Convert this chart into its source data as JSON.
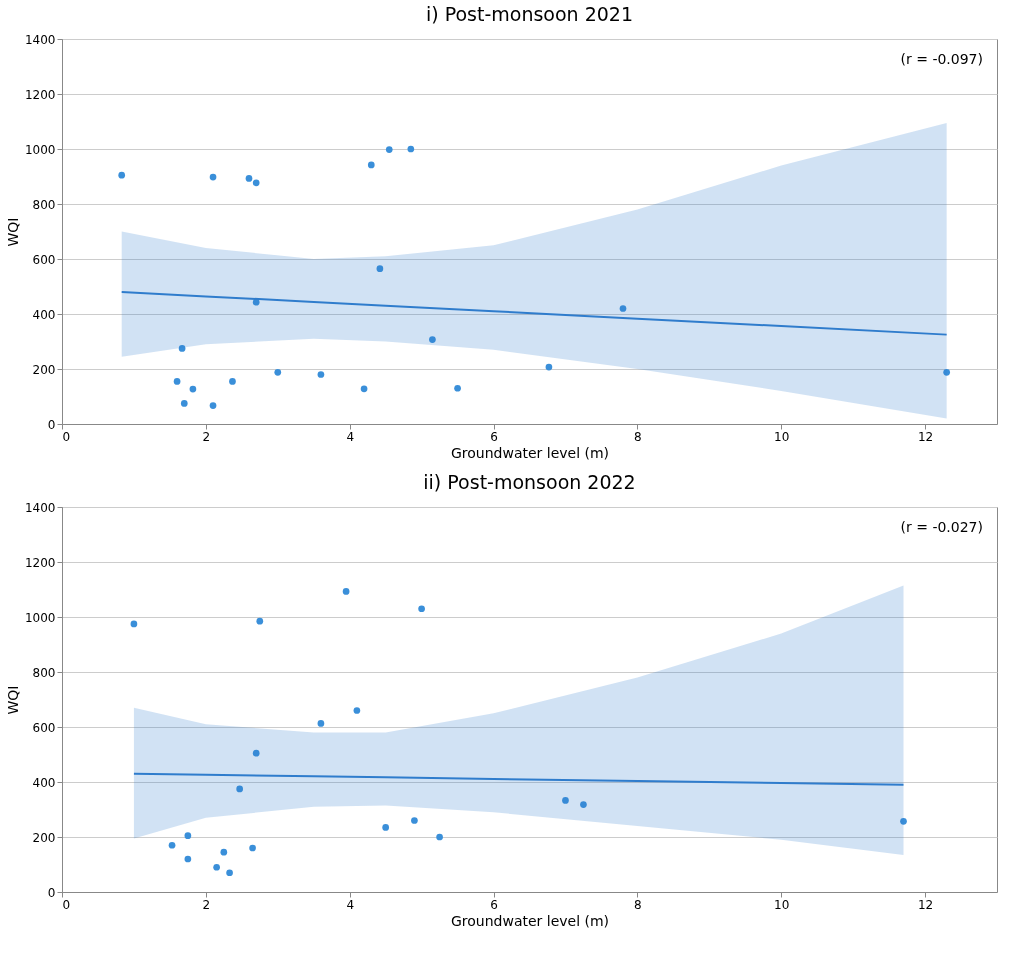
{
  "chart_data": [
    {
      "type": "scatter",
      "title": "i) Post-monsoon 2021",
      "xlabel": "Groundwater level (m)",
      "ylabel": "WQI",
      "annotations": [
        "(r = -0.097)"
      ],
      "xlim": [
        0,
        13
      ],
      "xticks": [
        0,
        2,
        4,
        6,
        8,
        10,
        12
      ],
      "ylim": [
        0,
        1400
      ],
      "yticks": [
        0,
        200,
        400,
        600,
        800,
        1000,
        1200,
        1400
      ],
      "grid": "y",
      "series": [
        {
          "color": "#3a8fd9",
          "marker": "circle",
          "x": [
            0.83,
            2.1,
            2.6,
            2.7,
            4.3,
            4.55,
            4.85,
            4.42,
            2.7,
            7.8,
            5.15,
            1.67,
            1.6,
            1.82,
            1.7,
            2.1,
            2.37,
            3.0,
            3.6,
            4.2,
            5.5,
            6.77,
            12.3
          ],
          "values": [
            905,
            898,
            893,
            877,
            942,
            998,
            1000,
            565,
            443,
            420,
            307,
            275,
            155,
            127,
            75,
            67,
            155,
            188,
            180,
            128,
            130,
            207,
            188
          ]
        },
        {
          "type": "line",
          "color": "#2f7ccc",
          "x": [
            0.83,
            2,
            3.5,
            4.5,
            6,
            8,
            10,
            12.3
          ],
          "values": [
            480,
            464,
            444,
            430,
            410,
            383,
            356,
            325
          ],
          "lower": [
            245,
            290,
            310,
            300,
            270,
            200,
            120,
            20
          ],
          "upper": [
            700,
            640,
            600,
            610,
            650,
            780,
            940,
            1095
          ]
        }
      ]
    },
    {
      "type": "scatter",
      "title": "ii) Post-monsoon 2022",
      "xlabel": "Groundwater level (m)",
      "ylabel": "WQI",
      "annotations": [
        "(r = -0.027)"
      ],
      "xlim": [
        0,
        13
      ],
      "xticks": [
        0,
        2,
        4,
        6,
        8,
        10,
        12
      ],
      "ylim": [
        0,
        1400
      ],
      "yticks": [
        0,
        200,
        400,
        600,
        800,
        1000,
        1200,
        1400
      ],
      "grid": "y",
      "series": [
        {
          "color": "#3a8fd9",
          "marker": "circle",
          "x": [
            1.0,
            2.75,
            3.95,
            5.0,
            3.6,
            4.1,
            2.7,
            2.47,
            1.53,
            1.75,
            1.75,
            2.15,
            2.25,
            2.33,
            2.65,
            4.5,
            4.9,
            5.25,
            7.0,
            7.25,
            11.7
          ],
          "values": [
            975,
            985,
            1093,
            1030,
            613,
            660,
            505,
            375,
            170,
            205,
            120,
            90,
            145,
            70,
            160,
            235,
            260,
            200,
            333,
            318,
            257
          ]
        },
        {
          "type": "line",
          "color": "#2f7ccc",
          "x": [
            1.0,
            2,
            3.5,
            4.5,
            6,
            8,
            10,
            11.7
          ],
          "values": [
            430,
            426,
            421,
            417,
            411,
            404,
            396,
            390
          ],
          "lower": [
            195,
            270,
            310,
            315,
            290,
            240,
            190,
            135
          ],
          "upper": [
            670,
            610,
            580,
            580,
            650,
            780,
            940,
            1115
          ]
        }
      ]
    }
  ]
}
